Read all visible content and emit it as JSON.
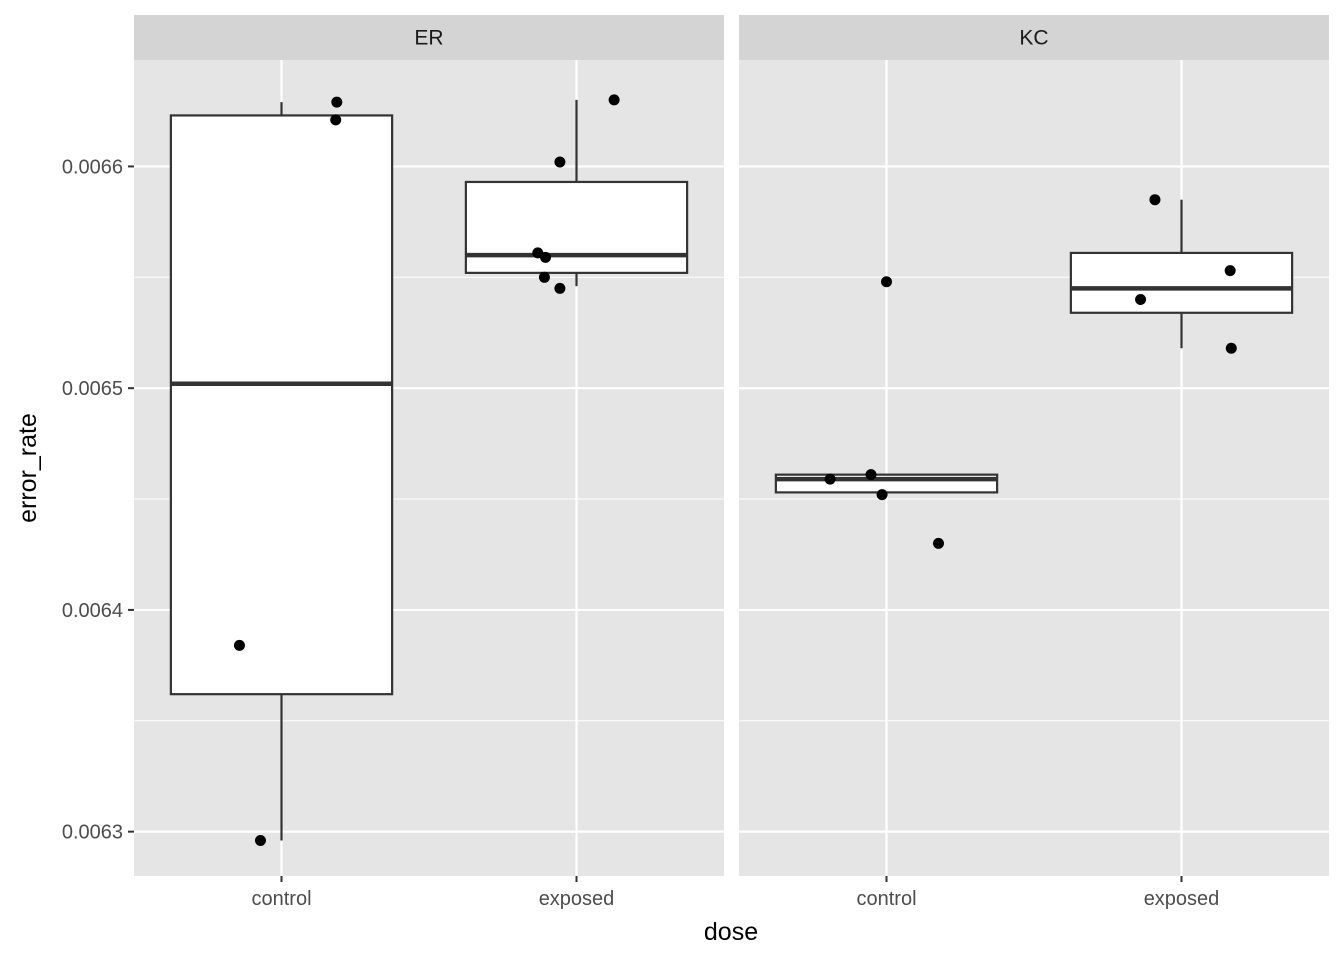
{
  "chart_data": {
    "type": "boxplot",
    "xlabel": "dose",
    "ylabel": "error_rate",
    "categories": [
      "control",
      "exposed"
    ],
    "y_ticks": [
      "0.0063",
      "0.0064",
      "0.0065",
      "0.0066"
    ],
    "y_tick_values": [
      0.0063,
      0.0064,
      0.0065,
      0.0066
    ],
    "ylim": [
      0.00628,
      0.006648
    ],
    "grid": true,
    "colors": {
      "panel_bg": "#e5e5e5",
      "strip_bg": "#d4d4d4",
      "grid": "#ffffff",
      "box_fill": "#ffffff",
      "box_line": "#333333",
      "point": "#000000"
    },
    "panels": [
      {
        "label": "ER",
        "boxes": [
          {
            "category": "control",
            "whisker_low": 0.006296,
            "q1": 0.006362,
            "median": 0.006502,
            "q3": 0.006623,
            "whisker_high": 0.006629
          },
          {
            "category": "exposed",
            "whisker_low": 0.006546,
            "q1": 0.006552,
            "median": 0.00656,
            "q3": 0.006593,
            "whisker_high": 0.00663
          }
        ],
        "points": [
          {
            "category": "control",
            "jitter": -0.38,
            "y": 0.006384
          },
          {
            "category": "control",
            "jitter": -0.19,
            "y": 0.006296
          },
          {
            "category": "control",
            "jitter": 0.49,
            "y": 0.006621
          },
          {
            "category": "control",
            "jitter": 0.5,
            "y": 0.006629
          },
          {
            "category": "exposed",
            "jitter": -0.35,
            "y": 0.006561
          },
          {
            "category": "exposed",
            "jitter": -0.28,
            "y": 0.006559
          },
          {
            "category": "exposed",
            "jitter": -0.29,
            "y": 0.00655
          },
          {
            "category": "exposed",
            "jitter": -0.15,
            "y": 0.006545
          },
          {
            "category": "exposed",
            "jitter": -0.15,
            "y": 0.006602
          },
          {
            "category": "exposed",
            "jitter": 0.34,
            "y": 0.00663
          }
        ]
      },
      {
        "label": "KC",
        "boxes": [
          {
            "category": "control",
            "whisker_low": 0.006453,
            "q1": 0.006453,
            "median": 0.006459,
            "q3": 0.006461,
            "whisker_high": 0.006461
          },
          {
            "category": "exposed",
            "whisker_low": 0.006518,
            "q1": 0.006534,
            "median": 0.006545,
            "q3": 0.006561,
            "whisker_high": 0.006585
          }
        ],
        "points": [
          {
            "category": "control",
            "jitter": -0.51,
            "y": 0.006459
          },
          {
            "category": "control",
            "jitter": -0.14,
            "y": 0.006461
          },
          {
            "category": "control",
            "jitter": -0.04,
            "y": 0.006452
          },
          {
            "category": "control",
            "jitter": 0.0,
            "y": 0.006548
          },
          {
            "category": "control",
            "jitter": 0.47,
            "y": 0.00643
          },
          {
            "category": "exposed",
            "jitter": -0.37,
            "y": 0.00654
          },
          {
            "category": "exposed",
            "jitter": -0.24,
            "y": 0.006585
          },
          {
            "category": "exposed",
            "jitter": 0.44,
            "y": 0.006553
          },
          {
            "category": "exposed",
            "jitter": 0.45,
            "y": 0.006518
          }
        ]
      }
    ]
  }
}
